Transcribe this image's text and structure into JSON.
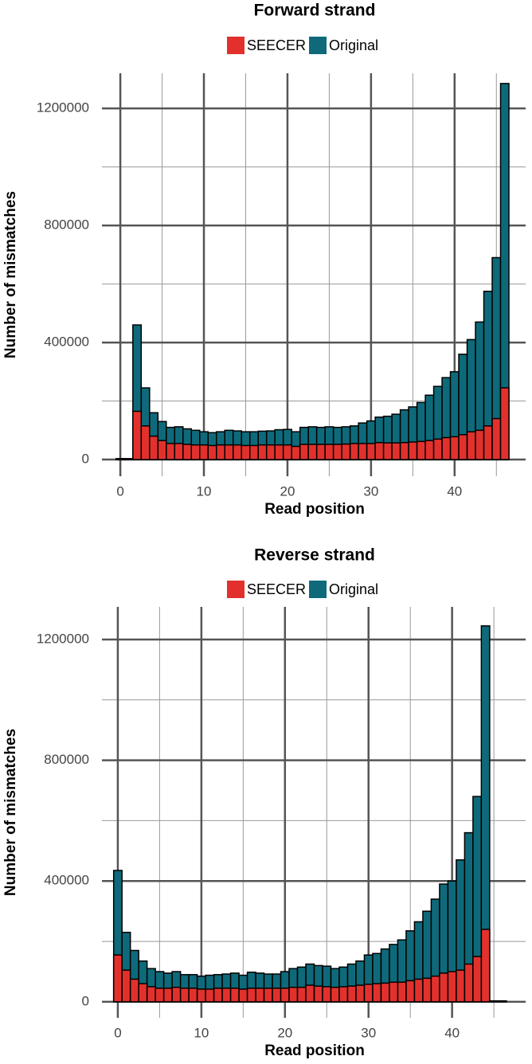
{
  "chart_data": [
    {
      "type": "bar",
      "title": "Forward strand",
      "xlabel": "Read position",
      "ylabel": "Number of mismatches",
      "x": [
        0,
        1,
        2,
        3,
        4,
        5,
        6,
        7,
        8,
        9,
        10,
        11,
        12,
        13,
        14,
        15,
        16,
        17,
        18,
        19,
        20,
        21,
        22,
        23,
        24,
        25,
        26,
        27,
        28,
        29,
        30,
        31,
        32,
        33,
        34,
        35,
        36,
        37,
        38,
        39,
        40,
        41,
        42,
        43,
        44,
        45,
        46
      ],
      "series": [
        {
          "name": "SEECER",
          "color": "#e2312c",
          "values": [
            3000,
            3000,
            165000,
            115000,
            80000,
            65000,
            55000,
            55000,
            52000,
            50000,
            50000,
            48000,
            50000,
            50000,
            50000,
            48000,
            48000,
            50000,
            50000,
            50000,
            50000,
            45000,
            52000,
            52000,
            52000,
            52000,
            52000,
            53000,
            55000,
            55000,
            55000,
            58000,
            57000,
            57000,
            58000,
            60000,
            62000,
            65000,
            70000,
            75000,
            78000,
            85000,
            95000,
            100000,
            115000,
            140000,
            245000
          ]
        },
        {
          "name": "Original",
          "color": "#0e6a7a",
          "values": [
            3000,
            3000,
            460000,
            245000,
            160000,
            130000,
            110000,
            112000,
            105000,
            100000,
            95000,
            92000,
            95000,
            100000,
            98000,
            95000,
            95000,
            97000,
            98000,
            102000,
            103000,
            95000,
            110000,
            112000,
            110000,
            112000,
            110000,
            112000,
            115000,
            125000,
            132000,
            145000,
            148000,
            155000,
            170000,
            180000,
            195000,
            220000,
            250000,
            280000,
            300000,
            360000,
            410000,
            470000,
            575000,
            690000,
            1285000
          ]
        }
      ],
      "xlim": [
        -2.2,
        48.5
      ],
      "xticks": [
        0,
        10,
        20,
        30,
        40
      ],
      "minor_xticks": [
        5,
        15,
        25,
        35,
        45
      ],
      "ylim": [
        -57000,
        1320000
      ],
      "yticks": [
        0,
        400000,
        800000,
        1200000
      ],
      "minor_yticks": [
        200000,
        600000,
        1000000
      ],
      "grid": true
    },
    {
      "type": "bar",
      "title": "Reverse strand",
      "xlabel": "Read position",
      "ylabel": "Number of mismatches",
      "x": [
        0,
        1,
        2,
        3,
        4,
        5,
        6,
        7,
        8,
        9,
        10,
        11,
        12,
        13,
        14,
        15,
        16,
        17,
        18,
        19,
        20,
        21,
        22,
        23,
        24,
        25,
        26,
        27,
        28,
        29,
        30,
        31,
        32,
        33,
        34,
        35,
        36,
        37,
        38,
        39,
        40,
        41,
        42,
        43,
        44,
        45,
        46
      ],
      "series": [
        {
          "name": "SEECER",
          "color": "#e2312c",
          "values": [
            155000,
            105000,
            75000,
            60000,
            50000,
            45000,
            45000,
            48000,
            45000,
            45000,
            42000,
            42000,
            45000,
            45000,
            45000,
            42000,
            45000,
            45000,
            45000,
            45000,
            45000,
            48000,
            48000,
            55000,
            52000,
            50000,
            48000,
            50000,
            52000,
            55000,
            58000,
            60000,
            62000,
            65000,
            65000,
            70000,
            75000,
            78000,
            85000,
            95000,
            100000,
            105000,
            125000,
            150000,
            240000,
            1000,
            1000
          ]
        },
        {
          "name": "Original",
          "color": "#0e6a7a",
          "values": [
            435000,
            230000,
            170000,
            135000,
            110000,
            100000,
            95000,
            100000,
            90000,
            90000,
            85000,
            88000,
            90000,
            92000,
            95000,
            88000,
            98000,
            95000,
            92000,
            92000,
            100000,
            110000,
            115000,
            125000,
            120000,
            118000,
            110000,
            115000,
            125000,
            135000,
            155000,
            160000,
            175000,
            190000,
            205000,
            235000,
            265000,
            300000,
            340000,
            390000,
            400000,
            470000,
            560000,
            680000,
            1245000,
            3000,
            3000
          ]
        }
      ],
      "xlim": [
        -1.9,
        48.8
      ],
      "xticks": [
        0,
        10,
        20,
        30,
        40
      ],
      "minor_xticks": [
        5,
        15,
        25,
        35,
        45
      ],
      "ylim": [
        -53000,
        1308000
      ],
      "yticks": [
        0,
        400000,
        800000,
        1200000
      ],
      "minor_yticks": [
        200000,
        600000,
        1000000
      ],
      "grid": true
    }
  ]
}
